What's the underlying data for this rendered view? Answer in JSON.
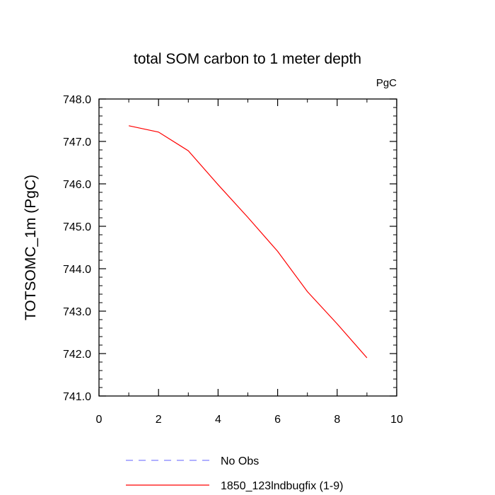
{
  "chart_data": {
    "type": "line",
    "title": "total SOM carbon to 1 meter depth",
    "units_label": "PgC",
    "xlabel": "",
    "ylabel": "TOTSOMC_1m  (PgC)",
    "xlim": [
      0,
      10
    ],
    "ylim": [
      741.0,
      748.0
    ],
    "x_ticks": [
      0,
      2,
      4,
      6,
      8,
      10
    ],
    "x_tick_labels": [
      "0",
      "2",
      "4",
      "6",
      "8",
      "10"
    ],
    "y_ticks": [
      741.0,
      742.0,
      743.0,
      744.0,
      745.0,
      746.0,
      747.0,
      748.0
    ],
    "y_tick_labels": [
      "741.0",
      "742.0",
      "743.0",
      "744.0",
      "745.0",
      "746.0",
      "747.0",
      "748.0"
    ],
    "grid": false,
    "legend_placement": "bottom",
    "series": [
      {
        "name": "1850_123lndbugfix (1-9)",
        "color": "#ff0000",
        "dash": "solid",
        "x": [
          1,
          2,
          3,
          4,
          5,
          6,
          7,
          8,
          9
        ],
        "values": [
          747.37,
          747.22,
          746.78,
          745.98,
          745.21,
          744.41,
          743.46,
          742.7,
          741.9
        ]
      }
    ],
    "legend": [
      {
        "label": "No Obs",
        "color": "#8080ff",
        "dash": "dashed"
      },
      {
        "label": "1850_123lndbugfix (1-9)",
        "color": "#ff0000",
        "dash": "solid"
      }
    ]
  }
}
